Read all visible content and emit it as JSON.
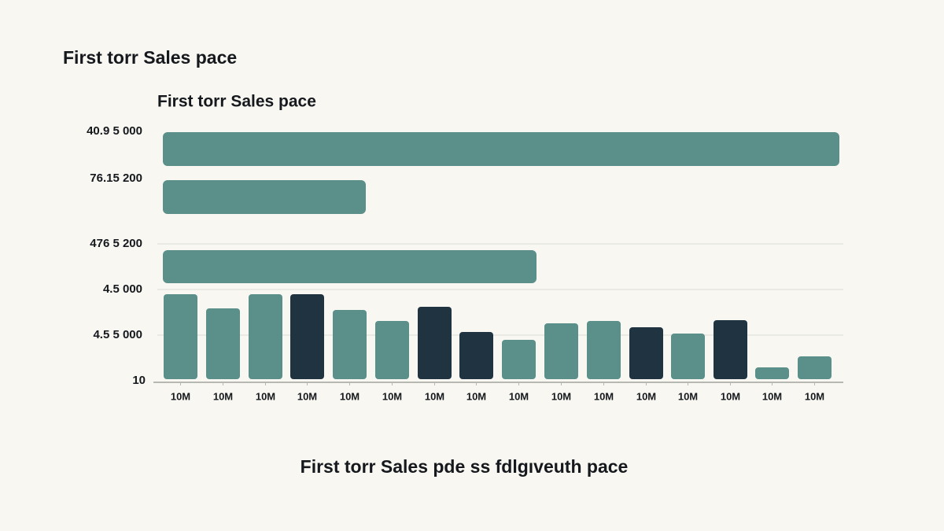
{
  "header": {
    "title": "First torr Sales pace"
  },
  "chart": {
    "title": "First torr Sales pace",
    "y_labels": [
      "40.9 5 000",
      "76.15 200",
      "476  5 200",
      "4.5  000",
      "4.5  5 000",
      "10"
    ],
    "x_labels": [
      "10M",
      "10M",
      "10M",
      "10M",
      "10M",
      "10M",
      "10M",
      "10M",
      "10M",
      "10M",
      "10M",
      "10M",
      "10M",
      "10M",
      "10M",
      "10M"
    ]
  },
  "caption": "First torr Sales pde ss fdlgıveuth pace"
}
